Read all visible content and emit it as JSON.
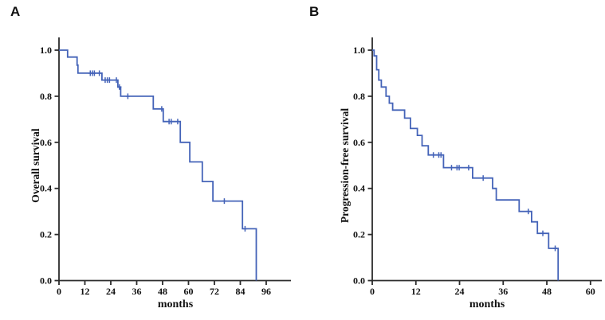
{
  "figure": {
    "panels": [
      {
        "letter": "A",
        "y_axis_title": "Overall survival",
        "x_axis_title": "months"
      },
      {
        "letter": "B",
        "y_axis_title": "Progression-free survival",
        "x_axis_title": "months"
      }
    ]
  },
  "colors": {
    "curve": "#4463b8",
    "axis": "#2b2b2b",
    "text": "#111111",
    "background": "#ffffff"
  },
  "chart_data": [
    {
      "type": "line",
      "subtype": "kaplan-meier-step",
      "panel": "A",
      "title": "",
      "xlabel": "months",
      "ylabel": "Overall survival",
      "xlim": [
        0,
        107
      ],
      "ylim": [
        0.0,
        1.0
      ],
      "xticks": [
        0,
        12,
        24,
        36,
        48,
        60,
        72,
        84,
        96
      ],
      "yticks": [
        0.0,
        0.2,
        0.4,
        0.6,
        0.8,
        1.0
      ],
      "grid": false,
      "legend": false,
      "steps": [
        [
          0,
          1.0
        ],
        [
          4,
          0.97
        ],
        [
          8.4,
          0.935
        ],
        [
          8.8,
          0.9
        ],
        [
          19.9,
          0.87
        ],
        [
          27.3,
          0.84
        ],
        [
          28.6,
          0.8
        ],
        [
          43.7,
          0.745
        ],
        [
          48.3,
          0.69
        ],
        [
          56.2,
          0.6
        ],
        [
          60.6,
          0.515
        ],
        [
          66.4,
          0.43
        ],
        [
          71.3,
          0.345
        ],
        [
          85.0,
          0.225
        ],
        [
          91.4,
          0.0
        ]
      ],
      "censors": [
        [
          14.5,
          0.9
        ],
        [
          15.5,
          0.9
        ],
        [
          16.4,
          0.9
        ],
        [
          18.7,
          0.9
        ],
        [
          21.4,
          0.87
        ],
        [
          22.4,
          0.87
        ],
        [
          23.4,
          0.87
        ],
        [
          26.6,
          0.87
        ],
        [
          28.0,
          0.84
        ],
        [
          31.9,
          0.8
        ],
        [
          47.6,
          0.745
        ],
        [
          51.0,
          0.69
        ],
        [
          52.0,
          0.69
        ],
        [
          55.0,
          0.69
        ],
        [
          76.6,
          0.345
        ],
        [
          86.2,
          0.225
        ]
      ]
    },
    {
      "type": "line",
      "subtype": "kaplan-meier-step",
      "panel": "B",
      "title": "",
      "xlabel": "months",
      "ylabel": "Progression-free survival",
      "xlim": [
        0,
        63
      ],
      "ylim": [
        0.0,
        1.0
      ],
      "xticks": [
        0,
        12,
        24,
        36,
        48,
        60
      ],
      "yticks": [
        0.0,
        0.2,
        0.4,
        0.6,
        0.8,
        1.0
      ],
      "grid": false,
      "legend": false,
      "steps": [
        [
          0,
          1.0
        ],
        [
          0.5,
          0.975
        ],
        [
          1.2,
          0.915
        ],
        [
          1.8,
          0.87
        ],
        [
          2.5,
          0.84
        ],
        [
          3.8,
          0.8
        ],
        [
          4.7,
          0.77
        ],
        [
          5.6,
          0.74
        ],
        [
          8.9,
          0.705
        ],
        [
          10.5,
          0.66
        ],
        [
          12.4,
          0.63
        ],
        [
          13.7,
          0.585
        ],
        [
          15.4,
          0.545
        ],
        [
          19.6,
          0.49
        ],
        [
          27.6,
          0.445
        ],
        [
          33.1,
          0.4
        ],
        [
          34.1,
          0.35
        ],
        [
          40.4,
          0.3
        ],
        [
          43.8,
          0.255
        ],
        [
          45.4,
          0.205
        ],
        [
          48.5,
          0.14
        ],
        [
          51.1,
          0.0
        ]
      ],
      "censors": [
        [
          16.8,
          0.545
        ],
        [
          18.3,
          0.545
        ],
        [
          18.9,
          0.545
        ],
        [
          21.8,
          0.49
        ],
        [
          23.3,
          0.49
        ],
        [
          23.9,
          0.49
        ],
        [
          26.5,
          0.49
        ],
        [
          30.5,
          0.445
        ],
        [
          42.9,
          0.3
        ],
        [
          46.9,
          0.205
        ],
        [
          50.3,
          0.14
        ]
      ]
    }
  ]
}
